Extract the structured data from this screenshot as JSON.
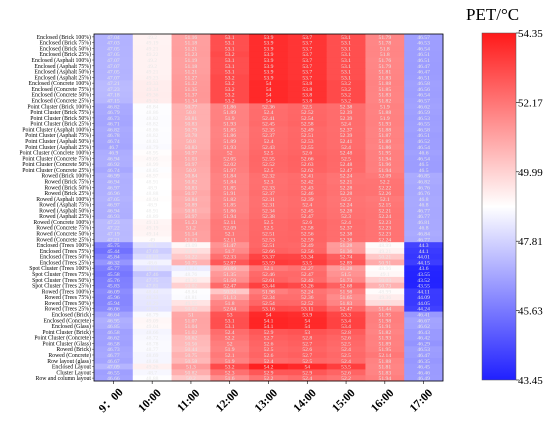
{
  "chart_data": {
    "type": "heatmap",
    "title": "",
    "xlabel": "",
    "ylabel": "",
    "colorbar": {
      "label": "PET/°C",
      "ticks": [
        54.35,
        52.17,
        49.99,
        47.81,
        45.63,
        43.45
      ],
      "range": [
        43.45,
        54.35
      ],
      "colors": [
        "#2020ff",
        "#ffffff",
        "#ff1a1a"
      ]
    },
    "x": [
      "9：00",
      "10:00",
      "11:00",
      "12:00",
      "13:00",
      "14:00",
      "15:00",
      "16:00",
      "17:00"
    ],
    "y": [
      "Enclosed (Brick 100%)",
      "Enclosed (Brick 75%)",
      "Enclosed (Brick 50%)",
      "Enclosed (Brick 25%)",
      "Enclosed (Asphalt 100%)",
      "Enclosed (Asphalt 75%)",
      "Enclosed (Asphalt 50%)",
      "Enclosed (Asphalt 25%)",
      "Enclosed (Concrete 100%)",
      "Enclosed (Concrete 75%)",
      "Enclosed (Concrete 50%)",
      "Enclosed (Concrete 25%)",
      "Point Cluster (Brick 100%)",
      "Point Cluster (Brick 75%)",
      "Point Cluster (Brick 50%)",
      "Point Cluster (Brick 25%)",
      "Point Cluster (Asphalt 100%)",
      "Point Cluster (Asphalt 75%)",
      "Point Cluster (Asphalt 50%)",
      "Point Cluster (Asphalt 25%)",
      "Point Cluster (Concrete 100%)",
      "Point Cluster (Concrete 75%)",
      "Point Cluster (Concrete 50%)",
      "Point Cluster (Concrete 25%)",
      "Rowed (Brick 100%)",
      "Rowed (Brick 75%)",
      "Rowed (Brick 50%)",
      "Rowed (Brick 25%)",
      "Rowed (Asphalt 100%)",
      "Rowed (Asphalt 75%)",
      "Rowed (Asphalt 50%)",
      "Rowed (Asphalt 25%)",
      "Rowed (Concrete 100%)",
      "Rowed (Concrete 75%)",
      "Rowed (Concrete 50%)",
      "Rowed (Concrete 25%)",
      "Enclosed (Trees 100%)",
      "Enclosed (Trees 75%)",
      "Enclosed (Trees 50%)",
      "Enclosed (Trees 25%)",
      "Spot Cluster (Trees 100%)",
      "Spot Cluster (Trees 75%)",
      "Spot Cluster (Trees 50%)",
      "Spot Cluster (Trees 25%)",
      "Rowed (Trees 100%)",
      "Rowed (Trees 75%)",
      "Rowed (Trees 50%)",
      "Rowed (Trees 25%)",
      "Enclosed (Brick)",
      "Enclosed (Concrete)",
      "Enclosed (Glass)",
      "Point Cluster (Brick)",
      "Point Cluster (Concrete)",
      "Point Cluster (Glass)",
      "Rowed (Brick)",
      "Rowed (Concrete)",
      "Row layout (glass)",
      "Enclosed Layout",
      "Cluster Layout",
      "Row and column layout"
    ],
    "values": [
      [
        47.04,
        49.2,
        51.16,
        53.1,
        53.9,
        53.7,
        53.1,
        51.79,
        46.57
      ],
      [
        47.03,
        49.19,
        51.18,
        53.1,
        53.9,
        53.7,
        53.1,
        51.78,
        46.53
      ],
      [
        47.05,
        49.21,
        51.21,
        53.1,
        53.9,
        53.7,
        53.1,
        51.8,
        46.54
      ],
      [
        47.05,
        49.22,
        51.23,
        53.2,
        53.9,
        53.7,
        53.1,
        51.8,
        46.51
      ],
      [
        47.07,
        49.2,
        51.19,
        53.1,
        53.9,
        53.7,
        53.1,
        51.76,
        46.51
      ],
      [
        47.07,
        49.2,
        51.18,
        53.1,
        53.9,
        53.7,
        53.1,
        51.79,
        46.47
      ],
      [
        47.05,
        49.21,
        51.21,
        53.1,
        53.9,
        53.7,
        53.1,
        51.81,
        46.47
      ],
      [
        47.07,
        49.23,
        51.27,
        53.2,
        53.9,
        53.7,
        53.1,
        51.83,
        46.51
      ],
      [
        47.21,
        49.33,
        51.32,
        53.2,
        54.0,
        53.8,
        53.2,
        51.88,
        46.58
      ],
      [
        47.23,
        49.34,
        51.35,
        53.2,
        54.0,
        53.8,
        53.2,
        51.85,
        46.56
      ],
      [
        47.18,
        49.36,
        51.37,
        53.2,
        54.0,
        53.8,
        53.2,
        51.83,
        46.54
      ],
      [
        47.15,
        49.32,
        51.34,
        53.2,
        54.0,
        53.8,
        53.2,
        51.82,
        46.57
      ],
      [
        46.82,
        48.84,
        50.77,
        51.86,
        52.36,
        52.5,
        52.38,
        51.9,
        46.62
      ],
      [
        46.79,
        48.86,
        50.8,
        51.89,
        52.4,
        52.52,
        52.39,
        51.88,
        46.59
      ],
      [
        46.73,
        48.82,
        50.81,
        51.9,
        52.41,
        52.54,
        52.39,
        51.9,
        46.53
      ],
      [
        46.71,
        48.82,
        50.83,
        51.93,
        52.45,
        52.58,
        52.4,
        51.93,
        46.55
      ],
      [
        46.82,
        48.86,
        50.79,
        51.85,
        52.35,
        52.49,
        52.37,
        51.88,
        46.58
      ],
      [
        46.78,
        48.82,
        50.78,
        51.86,
        52.37,
        52.51,
        52.39,
        51.87,
        46.51
      ],
      [
        46.74,
        48.83,
        50.8,
        51.89,
        52.4,
        52.53,
        52.41,
        51.89,
        46.52
      ],
      [
        46.7,
        48.79,
        50.83,
        51.93,
        52.43,
        52.55,
        52.4,
        51.86,
        46.54
      ],
      [
        46.9,
        48.95,
        50.97,
        52.0,
        52.5,
        52.6,
        52.48,
        51.95,
        46.6
      ],
      [
        46.94,
        49.05,
        51.03,
        52.05,
        52.55,
        52.66,
        52.5,
        51.94,
        46.54
      ],
      [
        46.92,
        48.99,
        50.97,
        52.02,
        52.52,
        52.63,
        52.48,
        51.96,
        46.5
      ],
      [
        46.74,
        48.85,
        50.9,
        51.97,
        52.5,
        52.62,
        52.47,
        51.94,
        46.5
      ],
      [
        46.99,
        48.97,
        50.84,
        51.84,
        52.32,
        52.41,
        52.24,
        52.09,
        46.85
      ],
      [
        46.94,
        48.91,
        50.82,
        51.84,
        52.3,
        52.42,
        52.21,
        52.2,
        46.82
      ],
      [
        46.97,
        48.9,
        50.83,
        51.85,
        52.33,
        52.43,
        52.28,
        52.22,
        46.76
      ],
      [
        46.96,
        48.88,
        50.97,
        51.91,
        52.37,
        52.46,
        52.28,
        52.26,
        46.76
      ],
      [
        47.05,
        48.94,
        50.84,
        51.82,
        52.31,
        52.39,
        52.2,
        52.1,
        46.8
      ],
      [
        46.97,
        48.9,
        50.89,
        51.85,
        52.31,
        52.4,
        52.24,
        52.15,
        46.8
      ],
      [
        46.94,
        48.91,
        50.81,
        51.86,
        52.34,
        52.45,
        52.28,
        52.21,
        46.77
      ],
      [
        46.93,
        48.89,
        50.97,
        51.94,
        52.38,
        52.47,
        52.3,
        52.24,
        46.77
      ],
      [
        47.23,
        49.13,
        51.23,
        52.11,
        52.5,
        52.6,
        52.4,
        52.23,
        46.81
      ],
      [
        47.22,
        49.19,
        51.2,
        52.09,
        52.5,
        52.58,
        52.37,
        52.23,
        46.8
      ],
      [
        47.19,
        49.14,
        51.14,
        52.1,
        52.51,
        52.56,
        52.38,
        52.23,
        46.84
      ],
      [
        47.21,
        49.0,
        51.13,
        52.11,
        52.53,
        52.59,
        52.38,
        52.24,
        46.77
      ],
      [
        45.75,
        48.1,
        49.09,
        51.47,
        52.51,
        52.49,
        51.28,
        48.99,
        44.3
      ],
      [
        45.44,
        47.69,
        49.68,
        51.7,
        52.66,
        52.56,
        51.36,
        49.21,
        44.1
      ],
      [
        45.84,
        48.03,
        50.22,
        52.33,
        53.37,
        53.34,
        52.74,
        50.21,
        44.01
      ],
      [
        46.32,
        48.6,
        50.75,
        52.87,
        53.59,
        53.5,
        52.89,
        50.91,
        44.15
      ],
      [
        45.77,
        48.15,
        48.43,
        50.89,
        52.1,
        52.27,
        51.28,
        48.96,
        43.6
      ],
      [
        45.58,
        47.46,
        48.76,
        51.35,
        52.46,
        52.47,
        51.5,
        49.1,
        43.55
      ],
      [
        45.76,
        47.75,
        49.36,
        51.58,
        52.61,
        52.42,
        51.73,
        50.03,
        43.52
      ],
      [
        45.83,
        47.81,
        50.02,
        52.47,
        53.44,
        53.26,
        52.68,
        50.73,
        43.55
      ],
      [
        46.09,
        48.44,
        48.84,
        50.24,
        51.98,
        52.24,
        51.98,
        48.99,
        44.11
      ],
      [
        45.96,
        48.33,
        48.81,
        51.13,
        52.34,
        52.36,
        51.65,
        49.36,
        44.09
      ],
      [
        45.94,
        48.29,
        49.55,
        51.8,
        52.54,
        52.52,
        51.83,
        49.75,
        44.05
      ],
      [
        46.06,
        48.22,
        50.02,
        52.04,
        53.16,
        53.11,
        52.47,
        51.44,
        44.24
      ],
      [
        46.64,
        48.79,
        51.0,
        53.0,
        54.0,
        53.9,
        53.3,
        51.95,
        46.41
      ],
      [
        46.95,
        49.09,
        51.07,
        53.1,
        54.1,
        54.0,
        53.4,
        51.98,
        46.67
      ],
      [
        46.85,
        49.04,
        51.04,
        53.1,
        54.1,
        54.0,
        53.4,
        51.91,
        46.62
      ],
      [
        46.58,
        48.66,
        51.02,
        52.4,
        52.9,
        53.0,
        52.8,
        51.82,
        46.43
      ],
      [
        46.62,
        48.72,
        50.62,
        52.2,
        52.7,
        52.8,
        52.6,
        51.93,
        46.42
      ],
      [
        46.58,
        48.78,
        50.56,
        52.0,
        52.6,
        52.7,
        52.5,
        51.89,
        46.29
      ],
      [
        46.73,
        48.77,
        50.44,
        51.9,
        52.5,
        52.6,
        52.4,
        51.95,
        46.53
      ],
      [
        46.77,
        48.69,
        50.75,
        52.1,
        52.6,
        52.7,
        52.5,
        52.14,
        46.47
      ],
      [
        46.67,
        48.68,
        50.58,
        51.9,
        52.4,
        52.5,
        52.4,
        51.88,
        46.35
      ],
      [
        47.09,
        49.26,
        51.3,
        53.2,
        54.2,
        54.0,
        53.5,
        51.81,
        46.45
      ],
      [
        46.55,
        48.7,
        50.82,
        52.3,
        52.9,
        52.9,
        52.6,
        51.83,
        46.46
      ],
      [
        46.66,
        48.88,
        50.2,
        51.6,
        52.2,
        52.4,
        52.2,
        51.94,
        46.49
      ]
    ]
  }
}
